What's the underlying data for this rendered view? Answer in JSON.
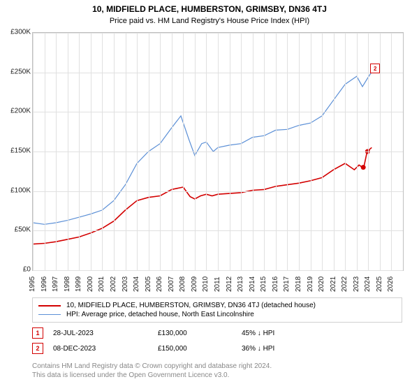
{
  "title": "10, MIDFIELD PLACE, HUMBERSTON, GRIMSBY, DN36 4TJ",
  "subtitle": "Price paid vs. HM Land Registry's House Price Index (HPI)",
  "chart": {
    "background_color": "#ffffff",
    "grid_color": "#e0e0e0",
    "border_color": "#bfbfbf",
    "x_domain": [
      1995,
      2027
    ],
    "y_domain": [
      0,
      300000
    ],
    "y_ticks": [
      {
        "v": 0,
        "label": "£0"
      },
      {
        "v": 50000,
        "label": "£50K"
      },
      {
        "v": 100000,
        "label": "£100K"
      },
      {
        "v": 150000,
        "label": "£150K"
      },
      {
        "v": 200000,
        "label": "£200K"
      },
      {
        "v": 250000,
        "label": "£250K"
      },
      {
        "v": 300000,
        "label": "£300K"
      }
    ],
    "x_ticks": [
      1995,
      1996,
      1997,
      1998,
      1999,
      2000,
      2001,
      2002,
      2003,
      2004,
      2005,
      2006,
      2007,
      2008,
      2009,
      2010,
      2011,
      2012,
      2013,
      2014,
      2015,
      2016,
      2017,
      2018,
      2019,
      2020,
      2021,
      2022,
      2023,
      2024,
      2025,
      2026
    ],
    "series": [
      {
        "name": "price_paid",
        "color": "#d30000",
        "width": 1.6,
        "points": [
          [
            1995,
            33000
          ],
          [
            1996,
            34000
          ],
          [
            1997,
            36000
          ],
          [
            1998,
            39000
          ],
          [
            1999,
            42000
          ],
          [
            2000,
            47000
          ],
          [
            2001,
            53000
          ],
          [
            2002,
            62000
          ],
          [
            2003,
            76000
          ],
          [
            2004,
            88000
          ],
          [
            2005,
            92000
          ],
          [
            2006,
            94000
          ],
          [
            2007,
            102000
          ],
          [
            2008,
            105000
          ],
          [
            2008.6,
            93000
          ],
          [
            2009,
            90000
          ],
          [
            2009.5,
            94000
          ],
          [
            2010,
            96000
          ],
          [
            2010.5,
            94000
          ],
          [
            2011,
            96000
          ],
          [
            2012,
            97000
          ],
          [
            2013,
            98000
          ],
          [
            2014,
            101000
          ],
          [
            2015,
            102000
          ],
          [
            2016,
            106000
          ],
          [
            2017,
            108000
          ],
          [
            2018,
            110000
          ],
          [
            2019,
            113000
          ],
          [
            2020,
            117000
          ],
          [
            2021,
            127000
          ],
          [
            2022,
            135000
          ],
          [
            2022.8,
            127000
          ],
          [
            2023.2,
            133000
          ],
          [
            2023.6,
            129000
          ],
          [
            2023.9,
            150000
          ],
          [
            2024.3,
            155000
          ]
        ]
      },
      {
        "name": "hpi",
        "color": "#5b8fd6",
        "width": 1.2,
        "points": [
          [
            1995,
            60000
          ],
          [
            1996,
            58000
          ],
          [
            1997,
            60000
          ],
          [
            1998,
            63000
          ],
          [
            1999,
            67000
          ],
          [
            2000,
            71000
          ],
          [
            2001,
            76000
          ],
          [
            2002,
            88000
          ],
          [
            2003,
            108000
          ],
          [
            2004,
            135000
          ],
          [
            2005,
            150000
          ],
          [
            2006,
            160000
          ],
          [
            2007,
            180000
          ],
          [
            2007.8,
            195000
          ],
          [
            2008.5,
            165000
          ],
          [
            2009,
            145000
          ],
          [
            2009.6,
            160000
          ],
          [
            2010,
            162000
          ],
          [
            2010.6,
            150000
          ],
          [
            2011,
            155000
          ],
          [
            2012,
            158000
          ],
          [
            2013,
            160000
          ],
          [
            2014,
            168000
          ],
          [
            2015,
            170000
          ],
          [
            2016,
            177000
          ],
          [
            2017,
            178000
          ],
          [
            2018,
            183000
          ],
          [
            2019,
            186000
          ],
          [
            2020,
            195000
          ],
          [
            2021,
            215000
          ],
          [
            2022,
            235000
          ],
          [
            2023,
            245000
          ],
          [
            2023.5,
            232000
          ],
          [
            2024,
            244000
          ],
          [
            2024.5,
            255000
          ]
        ]
      }
    ],
    "sale_points": [
      {
        "x": 2023.57,
        "y": 130000,
        "color": "#d30000"
      },
      {
        "x": 2023.94,
        "y": 150000,
        "color": "#d30000"
      }
    ],
    "markers_on_chart": [
      {
        "n": "2",
        "x": 2024.6,
        "y": 255000,
        "color": "#d30000"
      }
    ]
  },
  "legend": [
    {
      "color": "#d30000",
      "width": 2,
      "label": "10, MIDFIELD PLACE, HUMBERSTON, GRIMSBY, DN36 4TJ (detached house)"
    },
    {
      "color": "#5b8fd6",
      "width": 1.5,
      "label": "HPI: Average price, detached house, North East Lincolnshire"
    }
  ],
  "transactions": [
    {
      "n": "1",
      "color": "#d30000",
      "date": "28-JUL-2023",
      "price": "£130,000",
      "diff": "45% ↓ HPI"
    },
    {
      "n": "2",
      "color": "#d30000",
      "date": "08-DEC-2023",
      "price": "£150,000",
      "diff": "36% ↓ HPI"
    }
  ],
  "attribution_line1": "Contains HM Land Registry data © Crown copyright and database right 2024.",
  "attribution_line2": "This data is licensed under the Open Government Licence v3.0."
}
